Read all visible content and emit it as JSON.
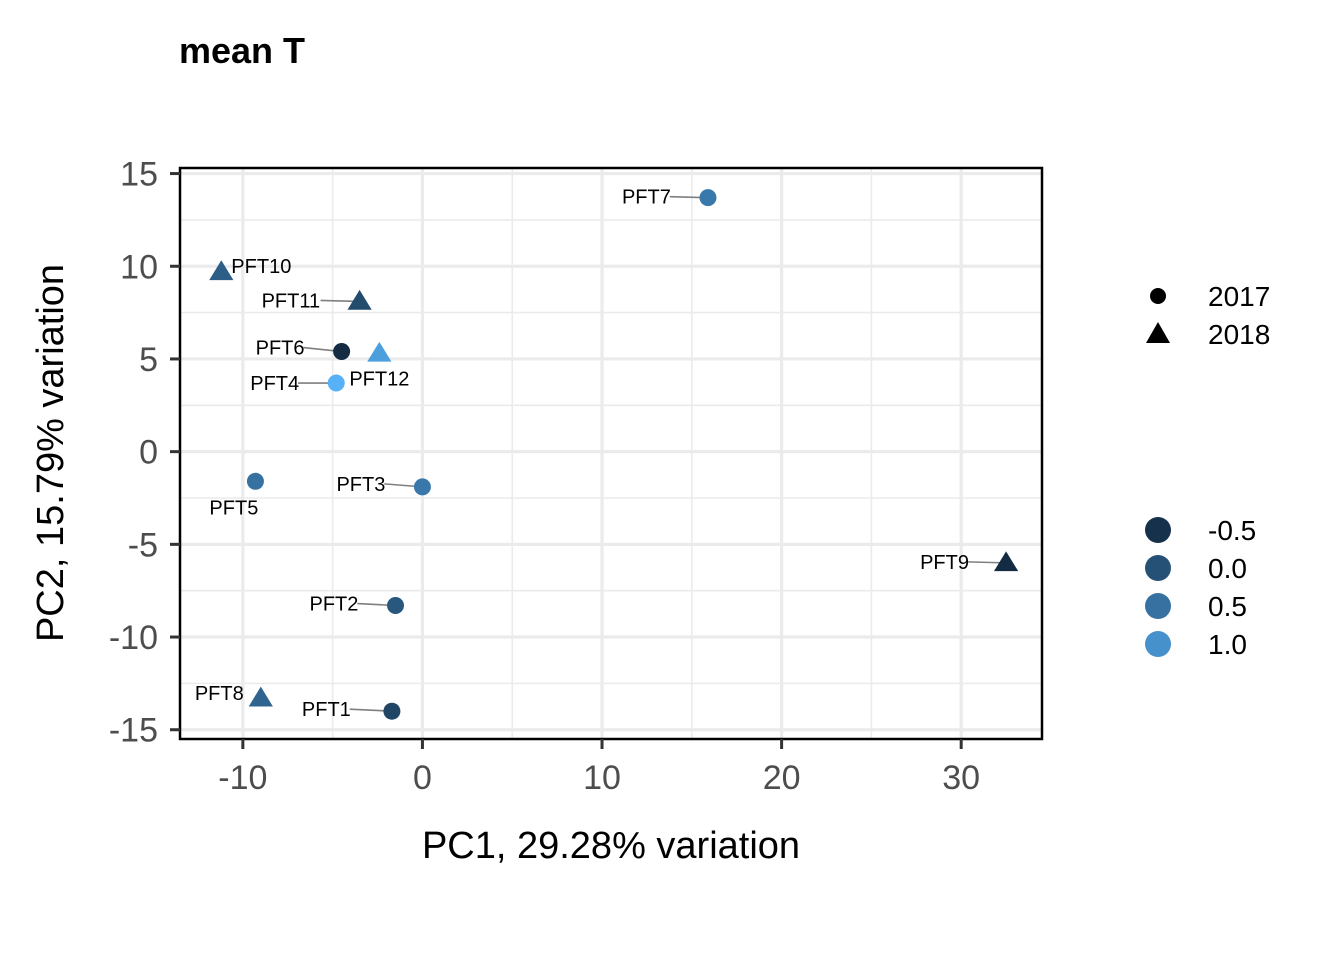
{
  "chart_data": {
    "type": "scatter",
    "title": "mean T",
    "xlabel": "PC1, 29.28% variation",
    "ylabel": "PC2, 15.79% variation",
    "xlim": [
      -13.5,
      34.5
    ],
    "ylim": [
      -15.5,
      15.3
    ],
    "x_ticks": [
      -10,
      0,
      10,
      20,
      30
    ],
    "x_tick_labels": [
      "-10",
      "0",
      "10",
      "20",
      "30"
    ],
    "y_ticks": [
      -15,
      -10,
      -5,
      0,
      5,
      10,
      15
    ],
    "y_tick_labels": [
      "-15",
      "-10",
      "-5",
      "0",
      "5",
      "10",
      "15"
    ],
    "grid": true,
    "points": [
      {
        "label": "PFT1",
        "x": -1.7,
        "y": -14.0,
        "shape": "2017",
        "color_value": -0.2
      },
      {
        "label": "PFT2",
        "x": -1.5,
        "y": -8.3,
        "shape": "2017",
        "color_value": 0.1
      },
      {
        "label": "PFT3",
        "x": 0.0,
        "y": -1.9,
        "shape": "2017",
        "color_value": 0.6
      },
      {
        "label": "PFT4",
        "x": -4.8,
        "y": 3.7,
        "shape": "2017",
        "color_value": 1.5
      },
      {
        "label": "PFT5",
        "x": -9.3,
        "y": -1.6,
        "shape": "2017",
        "color_value": 0.5
      },
      {
        "label": "PFT6",
        "x": -4.5,
        "y": 5.4,
        "shape": "2017",
        "color_value": -0.6
      },
      {
        "label": "PFT7",
        "x": 15.9,
        "y": 13.7,
        "shape": "2017",
        "color_value": 0.6
      },
      {
        "label": "PFT8",
        "x": -9.0,
        "y": -13.3,
        "shape": "2018",
        "color_value": 0.3
      },
      {
        "label": "PFT9",
        "x": 32.5,
        "y": -6.0,
        "shape": "2018",
        "color_value": -0.6
      },
      {
        "label": "PFT10",
        "x": -11.2,
        "y": 9.7,
        "shape": "2018",
        "color_value": 0.2
      },
      {
        "label": "PFT11",
        "x": -3.5,
        "y": 8.1,
        "shape": "2018",
        "color_value": -0.1
      },
      {
        "label": "PFT12",
        "x": -2.4,
        "y": 5.3,
        "shape": "2018",
        "color_value": 1.2
      }
    ],
    "legend_shape": {
      "placement": "right",
      "entries": [
        {
          "label": "2017",
          "shape": "circle"
        },
        {
          "label": "2018",
          "shape": "triangle"
        }
      ]
    },
    "legend_color": {
      "placement": "right",
      "entries": [
        {
          "label": "-0.5",
          "value": -0.5
        },
        {
          "label": "0.0",
          "value": 0.0
        },
        {
          "label": "0.5",
          "value": 0.5
        },
        {
          "label": "1.0",
          "value": 1.0
        }
      ],
      "gradient_low": "#132B43",
      "gradient_high": "#56B1F7",
      "gradient_range": [
        -0.6,
        1.5
      ]
    },
    "colors": {
      "axis_line": "#000000",
      "tick": "#333333",
      "grid": "#ebebeb",
      "leader": "#7f7f7f"
    }
  }
}
